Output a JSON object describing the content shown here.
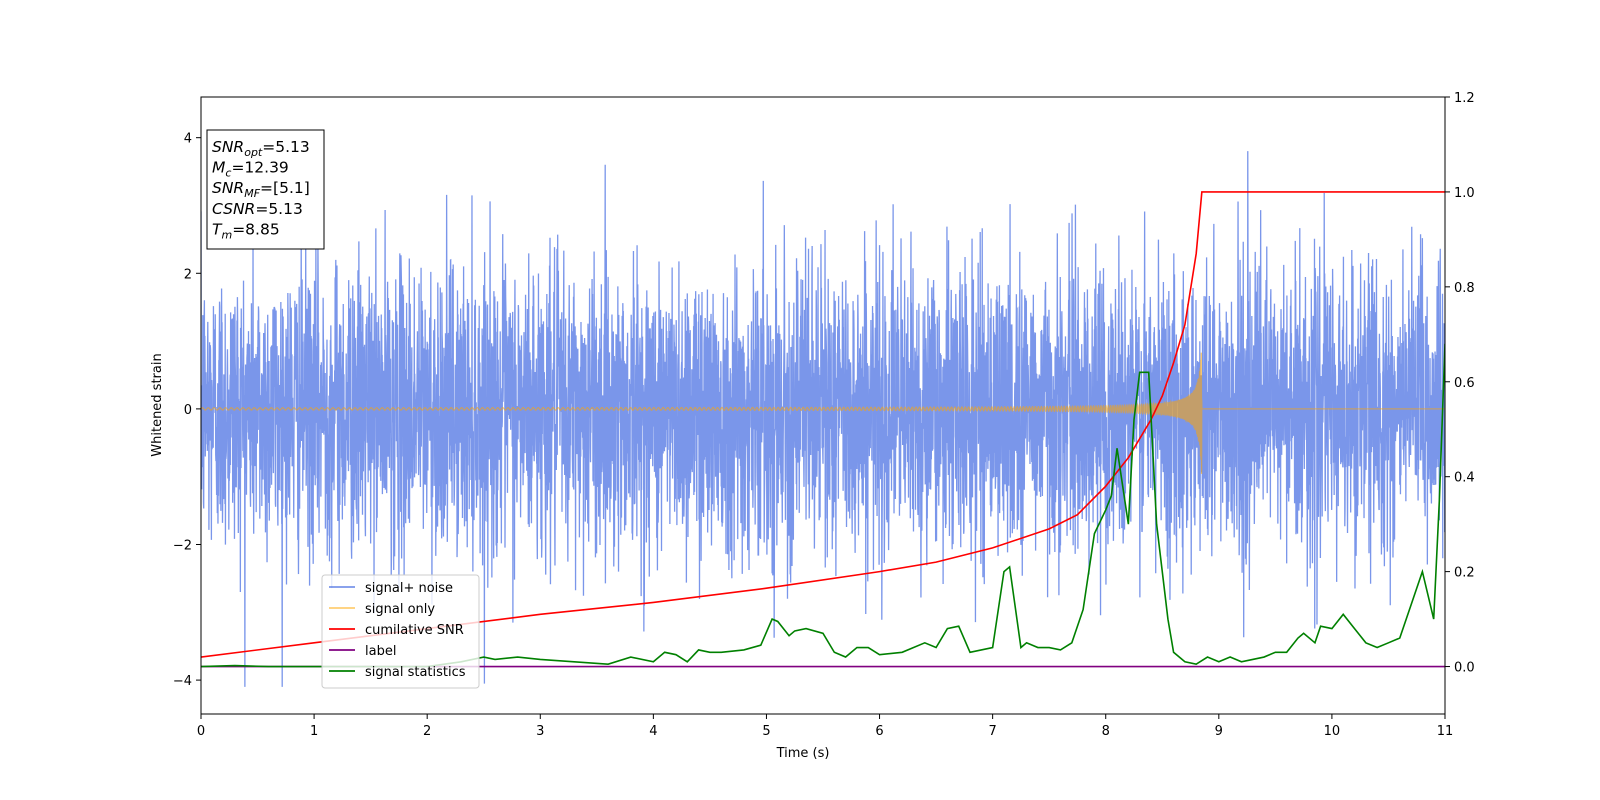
{
  "chart_data": {
    "type": "line",
    "xlabel": "Time (s)",
    "ylabel": "Whitened strain",
    "xlim": [
      0,
      11
    ],
    "ylim_left": [
      -4.5,
      4.6
    ],
    "ylim_right": [
      -0.1,
      1.2
    ],
    "x_ticks": [
      "0",
      "1",
      "2",
      "3",
      "4",
      "5",
      "6",
      "7",
      "8",
      "9",
      "10",
      "11"
    ],
    "y_left_ticks": [
      "−4",
      "−2",
      "0",
      "2",
      "4"
    ],
    "y_right_ticks": [
      "0.0",
      "0.2",
      "0.4",
      "0.6",
      "0.8",
      "1.0",
      "1.2"
    ],
    "grid": false,
    "legend_position": "lower-left",
    "info_box": [
      {
        "main": "SNR",
        "sub": "opt",
        "value": "=5.13"
      },
      {
        "main": "M",
        "sub": "c",
        "value": "=12.39"
      },
      {
        "main": "SNR",
        "sub": "MF",
        "value": "=[5.1]"
      },
      {
        "main": "CSNR",
        "sub": "",
        "value": "=5.13"
      },
      {
        "main": "T",
        "sub": "m",
        "value": "=8.85"
      }
    ],
    "series": [
      {
        "name": "signal+ noise",
        "axis": "left",
        "color": "#4169e1",
        "kind": "noise",
        "std": 1.0,
        "range": [
          -4.1,
          4.15
        ]
      },
      {
        "name": "signal only",
        "axis": "left",
        "color": "#ffa500",
        "kind": "chirp",
        "merger_time": 8.85,
        "peak_amplitude": 1.05
      },
      {
        "name": "cumilative SNR",
        "axis": "right",
        "color": "#ff0000",
        "x": [
          0,
          1,
          2,
          3,
          4,
          5,
          6,
          6.5,
          7,
          7.5,
          7.75,
          8,
          8.2,
          8.4,
          8.5,
          8.6,
          8.7,
          8.8,
          8.85,
          11
        ],
        "y": [
          0.02,
          0.05,
          0.08,
          0.11,
          0.135,
          0.165,
          0.2,
          0.22,
          0.25,
          0.29,
          0.32,
          0.38,
          0.44,
          0.52,
          0.57,
          0.64,
          0.72,
          0.87,
          1.0,
          1.0
        ]
      },
      {
        "name": "label",
        "axis": "right",
        "color": "#800080",
        "x": [
          0,
          11
        ],
        "y": [
          0,
          0
        ]
      },
      {
        "name": "signal statistics",
        "axis": "right",
        "color": "#008000",
        "x": [
          0,
          0.3,
          0.6,
          1.0,
          1.5,
          2.0,
          2.3,
          2.5,
          2.6,
          2.8,
          3.0,
          3.3,
          3.6,
          3.8,
          4.0,
          4.1,
          4.2,
          4.3,
          4.4,
          4.5,
          4.6,
          4.8,
          4.95,
          5.05,
          5.1,
          5.2,
          5.25,
          5.35,
          5.5,
          5.6,
          5.7,
          5.8,
          5.9,
          6.0,
          6.2,
          6.4,
          6.5,
          6.6,
          6.7,
          6.8,
          7.0,
          7.1,
          7.15,
          7.25,
          7.3,
          7.4,
          7.5,
          7.6,
          7.7,
          7.8,
          7.9,
          8.0,
          8.05,
          8.1,
          8.15,
          8.2,
          8.25,
          8.3,
          8.38,
          8.45,
          8.55,
          8.6,
          8.7,
          8.8,
          8.9,
          9.0,
          9.1,
          9.2,
          9.3,
          9.4,
          9.5,
          9.6,
          9.7,
          9.75,
          9.85,
          9.9,
          10.0,
          10.1,
          10.2,
          10.3,
          10.4,
          10.5,
          10.6,
          10.7,
          10.8,
          10.85,
          10.9,
          10.95,
          11.0
        ],
        "y": [
          0,
          0.002,
          0,
          0,
          0,
          0,
          0.01,
          0.02,
          0.015,
          0.02,
          0.015,
          0.01,
          0.005,
          0.02,
          0.01,
          0.03,
          0.025,
          0.01,
          0.035,
          0.03,
          0.03,
          0.035,
          0.045,
          0.1,
          0.095,
          0.065,
          0.075,
          0.08,
          0.07,
          0.03,
          0.02,
          0.04,
          0.04,
          0.025,
          0.03,
          0.05,
          0.04,
          0.08,
          0.085,
          0.03,
          0.04,
          0.2,
          0.21,
          0.04,
          0.05,
          0.04,
          0.04,
          0.035,
          0.05,
          0.12,
          0.28,
          0.33,
          0.36,
          0.46,
          0.38,
          0.3,
          0.52,
          0.62,
          0.62,
          0.3,
          0.1,
          0.03,
          0.01,
          0.005,
          0.02,
          0.01,
          0.02,
          0.01,
          0.015,
          0.02,
          0.03,
          0.03,
          0.06,
          0.07,
          0.05,
          0.085,
          0.08,
          0.11,
          0.08,
          0.05,
          0.04,
          0.05,
          0.06,
          0.13,
          0.2,
          0.15,
          0.1,
          0.35,
          0.68
        ]
      }
    ]
  }
}
